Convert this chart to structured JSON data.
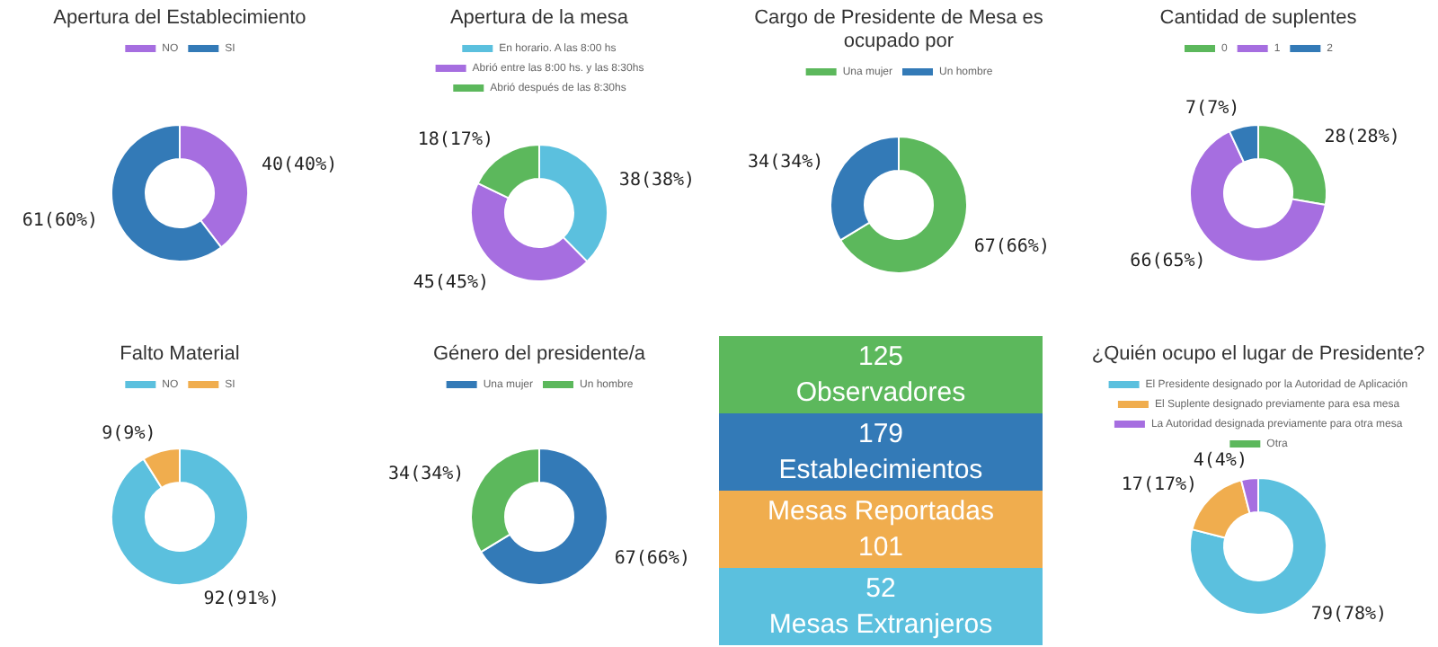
{
  "chart_data": [
    {
      "type": "donut",
      "title": "Apertura del Establecimiento",
      "categories": [
        "NO",
        "SI"
      ],
      "values": [
        40,
        61
      ],
      "value_labels": [
        "40(40%)",
        "61(60%)"
      ],
      "colors": [
        "#a66ee0",
        "#337ab7"
      ],
      "legend": "top"
    },
    {
      "type": "donut",
      "title": "Apertura de la mesa",
      "categories": [
        "En horario. A las 8:00 hs",
        "Abrió entre las 8:00 hs. y las 8:30hs",
        "Abrió después de las 8:30hs"
      ],
      "values": [
        38,
        45,
        18
      ],
      "value_labels": [
        "38(38%)",
        "45(45%)",
        "18(17%)"
      ],
      "colors": [
        "#5bc0de",
        "#a66ee0",
        "#5cb85c"
      ],
      "legend": "top"
    },
    {
      "type": "donut",
      "title": "Cargo de Presidente de Mesa es ocupado por",
      "categories": [
        "Una mujer",
        "Un hombre"
      ],
      "values": [
        67,
        34
      ],
      "value_labels": [
        "67(66%)",
        "34(34%)"
      ],
      "colors": [
        "#5cb85c",
        "#337ab7"
      ],
      "legend": "top"
    },
    {
      "type": "donut",
      "title": "Cantidad de suplentes",
      "categories": [
        "0",
        "1",
        "2"
      ],
      "values": [
        28,
        66,
        7
      ],
      "value_labels": [
        "28(28%)",
        "66(65%)",
        "7(7%)"
      ],
      "colors": [
        "#5cb85c",
        "#a66ee0",
        "#337ab7"
      ],
      "legend": "top"
    },
    {
      "type": "donut",
      "title": "Falto Material",
      "categories": [
        "NO",
        "SI"
      ],
      "values": [
        92,
        9
      ],
      "value_labels": [
        "92(91%)",
        "9(9%)"
      ],
      "colors": [
        "#5bc0de",
        "#f0ad4e"
      ],
      "legend": "top"
    },
    {
      "type": "donut",
      "title": "Género del presidente/a",
      "categories": [
        "Una mujer",
        "Un hombre"
      ],
      "values": [
        67,
        34
      ],
      "value_labels": [
        "67(66%)",
        "34(34%)"
      ],
      "colors": [
        "#337ab7",
        "#5cb85c"
      ],
      "legend": "top"
    },
    {
      "type": "other",
      "annotations": [
        "125",
        "Observadores",
        "179",
        "Establecimientos",
        "Mesas Reportadas",
        "101",
        "52",
        "Mesas Extranjeros"
      ],
      "colors": [
        "#5cb85c",
        "#337ab7",
        "#f0ad4e",
        "#5bc0de"
      ]
    },
    {
      "type": "donut",
      "title": "¿Quién ocupo el lugar de Presidente?",
      "categories": [
        "El Presidente designado por la Autoridad de Aplicación",
        "El Suplente designado previamente para esa mesa",
        "La Autoridad designada previamente para otra mesa",
        "Otra"
      ],
      "values": [
        79,
        17,
        4,
        0
      ],
      "value_labels": [
        "79(78%)",
        "17(17%)",
        "4(4%)",
        null
      ],
      "colors": [
        "#5bc0de",
        "#f0ad4e",
        "#a66ee0",
        "#5cb85c"
      ],
      "legend": "top"
    }
  ]
}
